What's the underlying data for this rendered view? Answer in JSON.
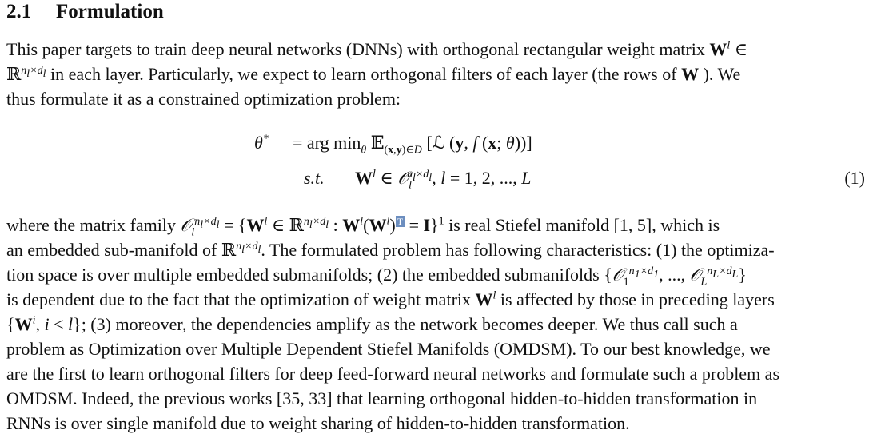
{
  "section": {
    "number": "2.1",
    "title": "Formulation"
  },
  "para1": {
    "lines": [
      "This paper targets to train deep neural networks (DNNs) with orthogonal rectangular weight matrix W^l ∈",
      "ℝ^{n_l×d_l} in each layer. Particularly, we expect to learn orthogonal filters of each layer (the rows of W ). We",
      "thus formulate it as a constrained optimization problem:"
    ],
    "l1": "This paper targets to train deep neural networks (DNNs) with orthogonal rectangular weight matrix ",
    "l2a": " in each layer. Particularly, we expect to learn orthogonal filters of each layer (the rows of ",
    "l2b": " ). We",
    "l3": "thus formulate it as a constrained optimization problem:"
  },
  "equation": {
    "lhs1": "θ*",
    "rhs1": "= arg min_θ 𝔼_{(x,y)∈D} [ℒ (y, f (x; θ))]",
    "lhs2": "s.t.",
    "rhs2": "W^l ∈ 𝒪_l^{n_l×d_l}, l = 1, 2, ..., L",
    "number": "(1)"
  },
  "para2": {
    "lines": [
      "where the matrix family 𝒪_l^{n_l×d_l} = {W^l ∈ ℝ^{n_l×d_l} : W^l(W^l)^T = I}^1 is real Stiefel manifold [1, 5], which is",
      "an embedded sub-manifold of ℝ^{n_l×d_l}. The formulated problem has following characteristics: (1) the optimiza-",
      "tion space is over multiple embedded submanifolds; (2) the embedded submanifolds {𝒪_1^{n_1×d_1}, ..., 𝒪_L^{n_L×d_L}}",
      "is dependent due to the fact that the optimization of weight matrix W^l is affected by those in preceding layers",
      "{W^i, i < l}; (3) moreover, the dependencies amplify as the network becomes deeper. We thus call such a",
      "problem as Optimization over Multiple Dependent Stiefel Manifolds (OMDSM). To our best knowledge, we",
      "are the first to learn orthogonal filters for deep feed-forward neural networks and formulate such a problem as",
      "OMDSM. Indeed, the previous works  [35, 33] that learning orthogonal hidden-to-hidden transformation in",
      "RNNs is over single manifold due to weight sharing of hidden-to-hidden transformation."
    ],
    "l1a": "where the matrix family ",
    "l1b": " is real Stiefel manifold [1, 5], which is",
    "l2a": "an embedded sub-manifold of ",
    "l2b": ". The formulated problem has following characteristics: (1) the optimiza-",
    "l3a": "tion space is over multiple embedded submanifolds; (2) the embedded submanifolds ",
    "l4a": "is dependent due to the fact that the optimization of weight matrix ",
    "l4b": " is affected by those in preceding layers",
    "l5b": "; (3) moreover, the dependencies amplify as the network becomes deeper. We thus call such a",
    "l6": "problem as Optimization over Multiple Dependent Stiefel Manifolds (OMDSM). To our best knowledge, we",
    "l7": "are the first to learn orthogonal filters for deep feed-forward neural networks and formulate such a problem as",
    "l8": "OMDSM. Indeed, the previous works  [35, 33] that learning orthogonal hidden-to-hidden transformation in",
    "l9": "RNNs is over single manifold due to weight sharing of hidden-to-hidden transformation."
  },
  "highlight_color": "#6c8ebf"
}
